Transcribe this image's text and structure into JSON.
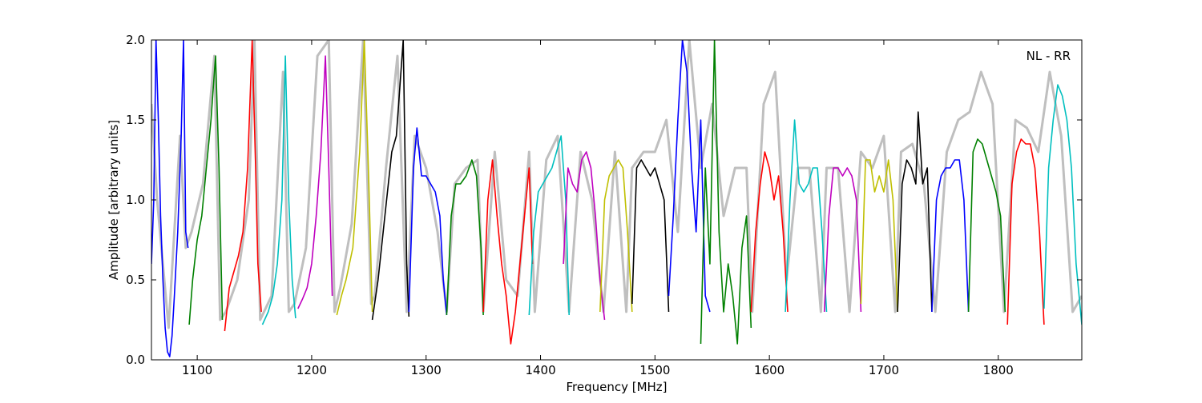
{
  "chart_data": {
    "type": "line",
    "title": "",
    "annotation": "NL - RR",
    "xlabel": "Frequency [MHz]",
    "ylabel": "Amplitude [arbitrary units]",
    "xlim": [
      1060,
      1873
    ],
    "ylim": [
      0.0,
      2.0
    ],
    "xticks": [
      1100,
      1200,
      1300,
      1400,
      1500,
      1600,
      1700,
      1800
    ],
    "yticks": [
      0.0,
      0.5,
      1.0,
      1.5,
      2.0
    ],
    "xtick_labels": [
      "1100",
      "1200",
      "1300",
      "1400",
      "1500",
      "1600",
      "1700",
      "1800"
    ],
    "ytick_labels": [
      "0.0",
      "0.5",
      "1.0",
      "1.5",
      "2.0"
    ],
    "grid": false,
    "legend": "none",
    "color_cycle": [
      "#0000ff",
      "#008000",
      "#ff0000",
      "#00bfbf",
      "#bf00bf",
      "#bfbf00",
      "#000000"
    ],
    "envelope_color": "#bfbfbf",
    "envelope": {
      "name": "",
      "x": [
        1060,
        1065,
        1075,
        1085,
        1090,
        1095,
        1105,
        1115,
        1120,
        1125,
        1135,
        1145,
        1150,
        1155,
        1165,
        1175,
        1180,
        1185,
        1195,
        1205,
        1215,
        1220,
        1225,
        1235,
        1245,
        1252,
        1255,
        1265,
        1275,
        1283,
        1290,
        1300,
        1310,
        1318,
        1325,
        1335,
        1345,
        1350,
        1360,
        1370,
        1380,
        1390,
        1395,
        1405,
        1415,
        1425,
        1435,
        1445,
        1455,
        1465,
        1475,
        1480,
        1490,
        1500,
        1510,
        1520,
        1530,
        1540,
        1550,
        1560,
        1570,
        1580,
        1585,
        1595,
        1605,
        1615,
        1625,
        1635,
        1645,
        1650,
        1660,
        1670,
        1680,
        1690,
        1700,
        1710,
        1715,
        1725,
        1735,
        1745,
        1755,
        1765,
        1775,
        1785,
        1795,
        1805,
        1815,
        1825,
        1835,
        1845,
        1855,
        1865,
        1873
      ],
      "y": [
        1.6,
        1.0,
        0.2,
        1.4,
        0.7,
        0.8,
        1.1,
        1.9,
        0.25,
        0.3,
        0.5,
        1.0,
        2.0,
        0.25,
        0.4,
        1.8,
        0.3,
        0.35,
        0.7,
        1.9,
        2.0,
        0.3,
        0.45,
        0.85,
        2.0,
        0.35,
        0.4,
        1.2,
        1.9,
        0.3,
        1.4,
        1.2,
        0.8,
        0.3,
        1.1,
        1.2,
        1.25,
        0.3,
        1.3,
        0.5,
        0.4,
        1.3,
        0.3,
        1.25,
        1.4,
        0.3,
        1.3,
        1.0,
        0.3,
        1.3,
        0.3,
        1.2,
        1.3,
        1.3,
        1.5,
        0.8,
        2.0,
        1.2,
        1.6,
        0.9,
        1.2,
        1.2,
        0.3,
        1.6,
        1.8,
        0.5,
        1.2,
        1.2,
        0.3,
        1.2,
        1.2,
        0.3,
        1.3,
        1.2,
        1.4,
        0.3,
        1.3,
        1.35,
        1.1,
        0.3,
        1.3,
        1.5,
        1.55,
        1.8,
        1.6,
        0.3,
        1.5,
        1.45,
        1.3,
        1.8,
        1.4,
        0.3,
        0.4
      ]
    },
    "series": [
      {
        "color": "#0000ff",
        "x": [
          1060,
          1062,
          1064,
          1066,
          1068,
          1070,
          1072,
          1074,
          1076,
          1078,
          1080,
          1083,
          1086,
          1088,
          1090,
          1092
        ],
        "y": [
          0.6,
          1.0,
          2.0,
          1.5,
          0.9,
          0.5,
          0.2,
          0.05,
          0.02,
          0.15,
          0.4,
          0.8,
          1.4,
          2.0,
          0.8,
          0.7
        ]
      },
      {
        "color": "#008000",
        "x": [
          1093,
          1096,
          1100,
          1104,
          1108,
          1112,
          1116,
          1119,
          1122
        ],
        "y": [
          0.22,
          0.5,
          0.75,
          0.9,
          1.2,
          1.5,
          1.9,
          1.2,
          0.25
        ]
      },
      {
        "color": "#ff0000",
        "x": [
          1124,
          1128,
          1132,
          1136,
          1140,
          1144,
          1148,
          1151,
          1153,
          1156
        ],
        "y": [
          0.18,
          0.45,
          0.55,
          0.65,
          0.8,
          1.2,
          2.0,
          1.2,
          0.6,
          0.3
        ]
      },
      {
        "color": "#00bfbf",
        "x": [
          1157,
          1162,
          1166,
          1170,
          1174,
          1177,
          1180,
          1183,
          1186
        ],
        "y": [
          0.22,
          0.3,
          0.4,
          0.6,
          1.0,
          1.9,
          1.0,
          0.5,
          0.26
        ]
      },
      {
        "color": "#bf00bf",
        "x": [
          1188,
          1192,
          1196,
          1200,
          1204,
          1208,
          1212,
          1215,
          1218
        ],
        "y": [
          0.32,
          0.38,
          0.45,
          0.6,
          0.9,
          1.3,
          1.9,
          1.2,
          0.4
        ]
      },
      {
        "color": "#bfbf00",
        "x": [
          1222,
          1226,
          1230,
          1236,
          1242,
          1246,
          1250,
          1253
        ],
        "y": [
          0.28,
          0.4,
          0.5,
          0.7,
          1.3,
          2.0,
          1.1,
          0.3
        ]
      },
      {
        "color": "#000000",
        "x": [
          1253,
          1258,
          1264,
          1270,
          1274,
          1277,
          1280,
          1283,
          1285
        ],
        "y": [
          0.25,
          0.5,
          0.9,
          1.3,
          1.4,
          1.7,
          2.0,
          0.6,
          0.27
        ]
      },
      {
        "color": "#0000ff",
        "x": [
          1285,
          1289,
          1292,
          1296,
          1300,
          1304,
          1308,
          1312,
          1315,
          1318
        ],
        "y": [
          0.3,
          1.2,
          1.45,
          1.15,
          1.15,
          1.1,
          1.05,
          0.9,
          0.5,
          0.28
        ]
      },
      {
        "color": "#008000",
        "x": [
          1318,
          1322,
          1326,
          1330,
          1335,
          1340,
          1344,
          1348,
          1350
        ],
        "y": [
          0.28,
          0.9,
          1.1,
          1.1,
          1.15,
          1.25,
          1.15,
          0.7,
          0.28
        ]
      },
      {
        "color": "#ff0000",
        "x": [
          1350,
          1354,
          1358,
          1362,
          1366,
          1370,
          1374,
          1378,
          1382,
          1386,
          1390,
          1393
        ],
        "y": [
          0.3,
          1.0,
          1.25,
          0.9,
          0.6,
          0.4,
          0.1,
          0.3,
          0.6,
          0.9,
          1.2,
          0.6
        ]
      },
      {
        "color": "#00bfbf",
        "x": [
          1390,
          1394,
          1398,
          1402,
          1406,
          1410,
          1414,
          1418,
          1422,
          1425
        ],
        "y": [
          0.28,
          0.8,
          1.05,
          1.1,
          1.15,
          1.2,
          1.3,
          1.4,
          1.0,
          0.28
        ]
      },
      {
        "color": "#bf00bf",
        "x": [
          1420,
          1424,
          1428,
          1432,
          1436,
          1440,
          1444,
          1448,
          1452,
          1456
        ],
        "y": [
          0.6,
          1.2,
          1.1,
          1.05,
          1.25,
          1.3,
          1.2,
          0.9,
          0.5,
          0.25
        ]
      },
      {
        "color": "#bfbf00",
        "x": [
          1452,
          1456,
          1460,
          1464,
          1468,
          1472,
          1476,
          1480
        ],
        "y": [
          0.3,
          1.0,
          1.15,
          1.2,
          1.25,
          1.2,
          0.8,
          0.3
        ]
      },
      {
        "color": "#000000",
        "x": [
          1480,
          1484,
          1488,
          1492,
          1496,
          1500,
          1504,
          1508,
          1512
        ],
        "y": [
          0.35,
          1.2,
          1.25,
          1.2,
          1.15,
          1.2,
          1.1,
          1.0,
          0.3
        ]
      },
      {
        "color": "#0000ff",
        "x": [
          1512,
          1516,
          1520,
          1524,
          1528,
          1532,
          1536,
          1540,
          1544,
          1548
        ],
        "y": [
          0.4,
          0.9,
          1.5,
          2.0,
          1.8,
          1.2,
          0.8,
          1.5,
          0.4,
          0.3
        ]
      },
      {
        "color": "#008000",
        "x": [
          1540,
          1544,
          1548,
          1552,
          1556,
          1560,
          1564,
          1568,
          1572,
          1576,
          1580,
          1584
        ],
        "y": [
          0.1,
          1.2,
          0.6,
          2.0,
          0.8,
          0.3,
          0.6,
          0.4,
          0.1,
          0.7,
          0.9,
          0.2
        ]
      },
      {
        "color": "#ff0000",
        "x": [
          1584,
          1588,
          1592,
          1596,
          1600,
          1604,
          1608,
          1612,
          1616
        ],
        "y": [
          0.3,
          0.8,
          1.1,
          1.3,
          1.2,
          1.0,
          1.15,
          0.8,
          0.3
        ]
      },
      {
        "color": "#00bfbf",
        "x": [
          1614,
          1618,
          1622,
          1626,
          1630,
          1634,
          1638,
          1642,
          1646,
          1650
        ],
        "y": [
          0.3,
          1.0,
          1.5,
          1.1,
          1.05,
          1.1,
          1.2,
          1.2,
          0.8,
          0.3
        ]
      },
      {
        "color": "#bf00bf",
        "x": [
          1648,
          1652,
          1656,
          1660,
          1664,
          1668,
          1672,
          1676,
          1680
        ],
        "y": [
          0.3,
          0.9,
          1.2,
          1.2,
          1.15,
          1.2,
          1.15,
          1.0,
          0.3
        ]
      },
      {
        "color": "#bfbf00",
        "x": [
          1680,
          1684,
          1688,
          1692,
          1696,
          1700,
          1704,
          1708,
          1712
        ],
        "y": [
          0.35,
          1.25,
          1.25,
          1.05,
          1.15,
          1.05,
          1.25,
          1.0,
          0.3
        ]
      },
      {
        "color": "#000000",
        "x": [
          1712,
          1716,
          1720,
          1724,
          1728,
          1730,
          1734,
          1738,
          1742
        ],
        "y": [
          0.3,
          1.1,
          1.25,
          1.2,
          1.1,
          1.55,
          1.1,
          1.2,
          0.3
        ]
      },
      {
        "color": "#0000ff",
        "x": [
          1742,
          1746,
          1750,
          1754,
          1758,
          1762,
          1766,
          1770,
          1774
        ],
        "y": [
          0.3,
          1.0,
          1.15,
          1.2,
          1.2,
          1.25,
          1.25,
          1.0,
          0.3
        ]
      },
      {
        "color": "#008000",
        "x": [
          1774,
          1778,
          1782,
          1786,
          1790,
          1794,
          1798,
          1802,
          1806
        ],
        "y": [
          0.3,
          1.3,
          1.38,
          1.35,
          1.25,
          1.15,
          1.05,
          0.9,
          0.3
        ]
      },
      {
        "color": "#ff0000",
        "x": [
          1808,
          1812,
          1816,
          1820,
          1824,
          1828,
          1832,
          1836,
          1840
        ],
        "y": [
          0.22,
          1.1,
          1.3,
          1.38,
          1.35,
          1.35,
          1.2,
          0.8,
          0.22
        ]
      },
      {
        "color": "#00bfbf",
        "x": [
          1840,
          1844,
          1848,
          1852,
          1856,
          1860,
          1864,
          1868,
          1873
        ],
        "y": [
          0.32,
          1.2,
          1.5,
          1.72,
          1.65,
          1.5,
          1.2,
          0.6,
          0.22
        ]
      }
    ]
  }
}
